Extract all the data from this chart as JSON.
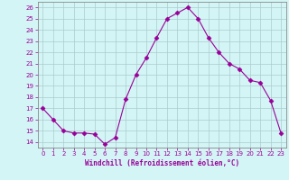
{
  "hours": [
    0,
    1,
    2,
    3,
    4,
    5,
    6,
    7,
    8,
    9,
    10,
    11,
    12,
    13,
    14,
    15,
    16,
    17,
    18,
    19,
    20,
    21,
    22,
    23
  ],
  "values": [
    17.0,
    16.0,
    15.0,
    14.8,
    14.8,
    14.7,
    13.8,
    14.4,
    17.8,
    20.0,
    21.5,
    23.3,
    25.0,
    25.5,
    26.0,
    25.0,
    23.3,
    22.0,
    21.0,
    20.5,
    19.5,
    19.3,
    17.7,
    14.8
  ],
  "line_color": "#990099",
  "marker": "D",
  "marker_size": 2.5,
  "bg_color": "#d4f5f5",
  "grid_color": "#aacccc",
  "xlabel": "Windchill (Refroidissement éolien,°C)",
  "xlabel_color": "#990099",
  "tick_color": "#990099",
  "spine_color": "#888888",
  "ylim": [
    13.5,
    26.5
  ],
  "xlim": [
    -0.5,
    23.5
  ],
  "yticks": [
    14,
    15,
    16,
    17,
    18,
    19,
    20,
    21,
    22,
    23,
    24,
    25,
    26
  ],
  "xticks": [
    0,
    1,
    2,
    3,
    4,
    5,
    6,
    7,
    8,
    9,
    10,
    11,
    12,
    13,
    14,
    15,
    16,
    17,
    18,
    19,
    20,
    21,
    22,
    23
  ]
}
